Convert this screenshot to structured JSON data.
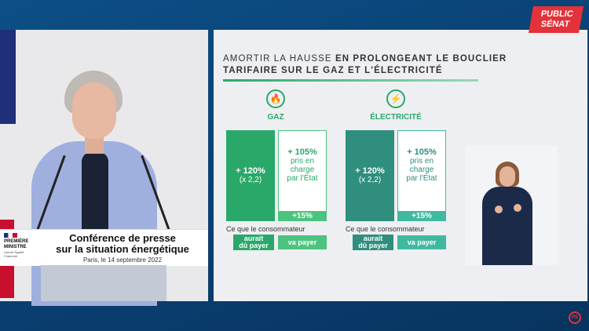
{
  "logo": {
    "line1": "PUBLIC",
    "line2": "SÉNAT"
  },
  "podium": {
    "ministry_line1": "PREMIÈRE",
    "ministry_line2": "MINISTRE",
    "motto": "Liberté Égalité Fraternité",
    "title_line1": "Conférence de presse",
    "title_line2": "sur la situation énergétique",
    "date": "Paris, le 14 septembre 2022"
  },
  "slide": {
    "title_regular": "AMORTIR LA HAUSSE",
    "title_bold_1": "EN PROLONGEANT LE BOUCLIER",
    "title_bold_2": "TARIFAIRE SUR LE GAZ ET L'ÉLECTRICITÉ",
    "columns": [
      {
        "icon": "flame-icon",
        "icon_glyph": "🔥",
        "label": "GAZ",
        "dark_value": "+ 120%",
        "dark_sub": "(x 2,2)",
        "state_value": "+ 105%",
        "state_sub_1": "pris en",
        "state_sub_2": "charge",
        "state_sub_3": "par l'État",
        "strip": "+15%",
        "consumer_text": "Ce que le consommateur",
        "tag_dark_1": "aurait",
        "tag_dark_2": "dû payer",
        "tag_light": "va payer",
        "dark_color": "#2aa86a",
        "light_color": "#4cc37e"
      },
      {
        "icon": "lightning-icon",
        "icon_glyph": "⚡",
        "label": "ÉLECTRICITÉ",
        "dark_value": "+ 120%",
        "dark_sub": "(x 2,2)",
        "state_value": "+ 105%",
        "state_sub_1": "pris en",
        "state_sub_2": "charge",
        "state_sub_3": "par l'État",
        "strip": "+15%",
        "consumer_text": "Ce que le consommateur",
        "tag_dark_1": "aurait",
        "tag_dark_2": "dû payer",
        "tag_light": "va payer",
        "dark_color": "#2f8e7e",
        "light_color": "#41b9a0"
      }
    ]
  },
  "corner_badge": "PS"
}
